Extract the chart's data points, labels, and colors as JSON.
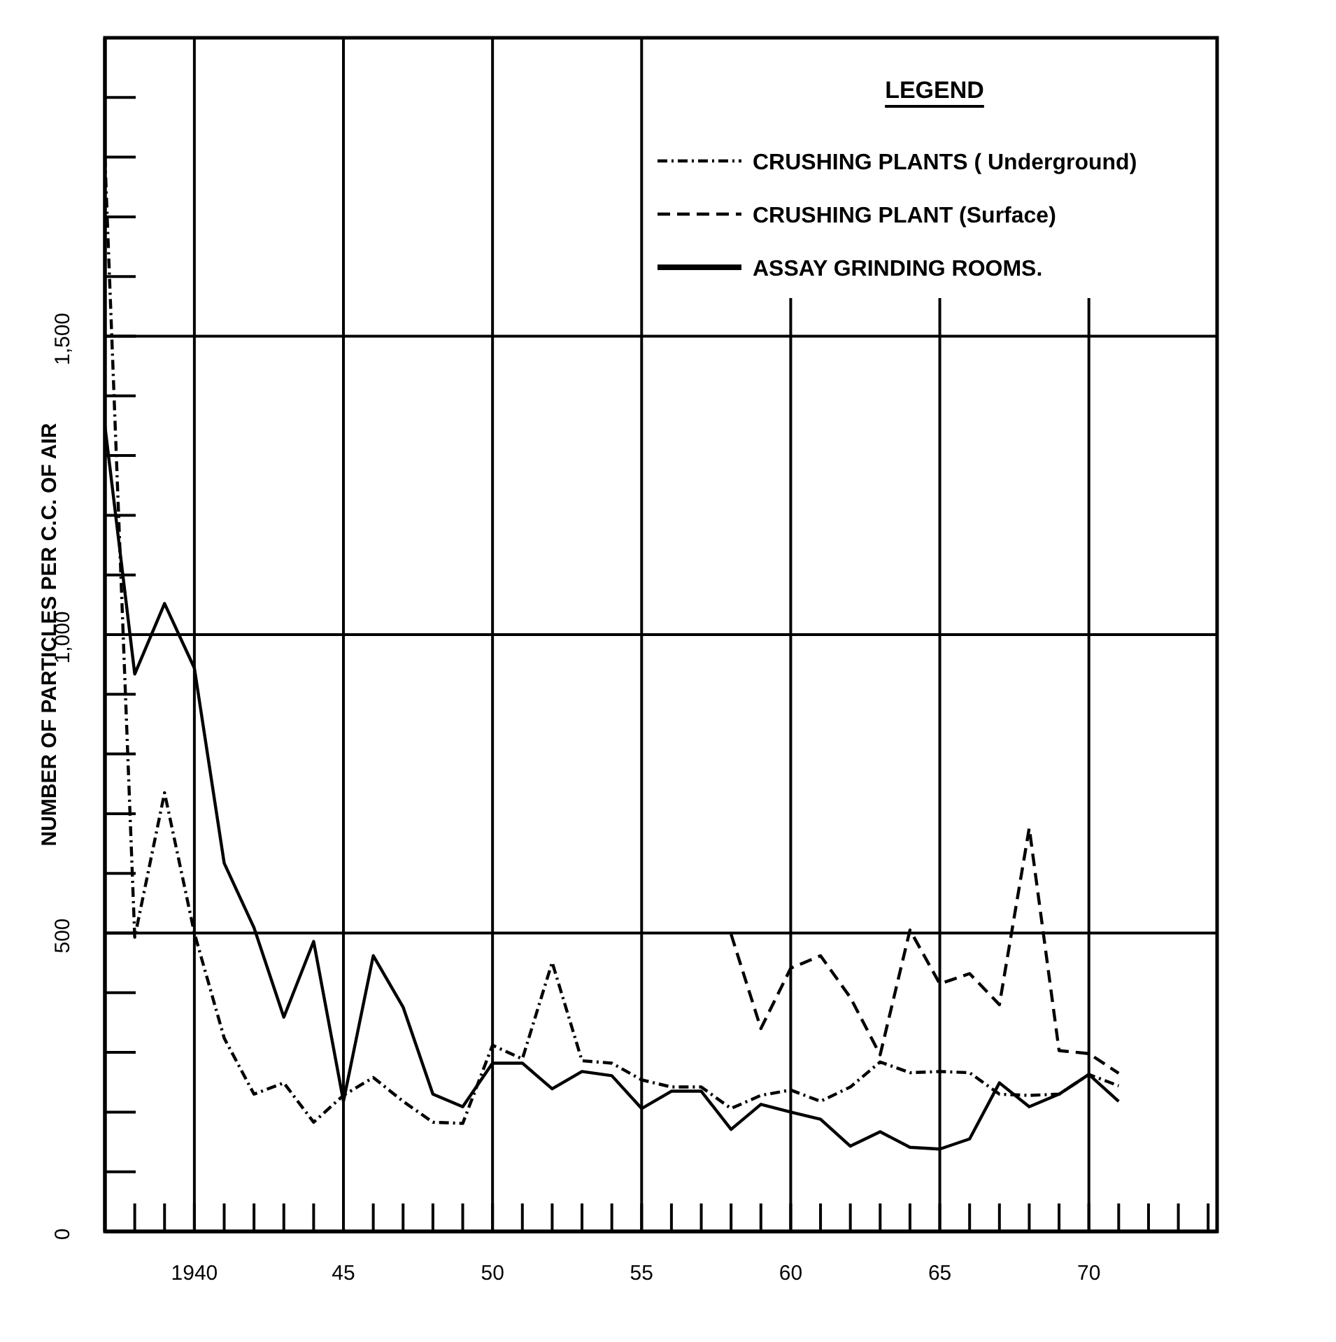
{
  "chart_data": {
    "type": "line",
    "ylabel": "NUMBER OF PARTICLES PER C.C. OF AIR",
    "legend_title": "LEGEND",
    "legend": "top right",
    "grid": true,
    "x": [
      1937,
      1938,
      1939,
      1940,
      1941,
      1942,
      1943,
      1944,
      1945,
      1946,
      1947,
      1948,
      1949,
      1950,
      1951,
      1952,
      1953,
      1954,
      1955,
      1956,
      1957,
      1958,
      1959,
      1960,
      1961,
      1962,
      1963,
      1964,
      1965,
      1966,
      1967,
      1968,
      1969,
      1970,
      1971
    ],
    "xlim": [
      1937,
      1974.3
    ],
    "ylim": [
      0,
      2000
    ],
    "xticks": [
      1940,
      {
        "value": 1945,
        "label": "45"
      },
      {
        "value": 1950,
        "label": "50"
      },
      {
        "value": 1955,
        "label": "55"
      },
      {
        "value": 1960,
        "label": "60"
      },
      {
        "value": 1965,
        "label": "65"
      },
      {
        "value": 1970,
        "label": "70"
      }
    ],
    "yticks": [
      0,
      500,
      {
        "value": 1000,
        "label": "1,000"
      },
      {
        "value": 1500,
        "label": "1,500"
      }
    ],
    "series": [
      {
        "name": "CRUSHING PLANTS ( Underground)",
        "color": "#000000",
        "line_style": "dotted",
        "values": [
          1800,
          493,
          735,
          500,
          324,
          230,
          249,
          183,
          228,
          258,
          218,
          183,
          181,
          312,
          289,
          451,
          286,
          282,
          254,
          242,
          242,
          206,
          228,
          237,
          218,
          242,
          284,
          266,
          268,
          266,
          230,
          228,
          230,
          263,
          244
        ]
      },
      {
        "name": "CRUSHING PLANT (Surface)",
        "color": "#000000",
        "line_style": "dashed",
        "values": [
          null,
          null,
          null,
          null,
          null,
          null,
          null,
          null,
          null,
          null,
          null,
          null,
          null,
          null,
          null,
          null,
          null,
          null,
          null,
          null,
          null,
          498,
          340,
          441,
          462,
          392,
          296,
          505,
          415,
          432,
          380,
          676,
          303,
          298,
          265
        ]
      },
      {
        "name": "ASSAY GRINDING ROOMS.",
        "color": "#000000",
        "line_style": "solid",
        "values": [
          1350,
          934,
          1052,
          944,
          617,
          509,
          359,
          486,
          218,
          462,
          376,
          230,
          209,
          282,
          282,
          239,
          268,
          261,
          206,
          235,
          235,
          171,
          213,
          200,
          188,
          143,
          167,
          141,
          138,
          155,
          249,
          209,
          230,
          263,
          218
        ]
      }
    ]
  }
}
